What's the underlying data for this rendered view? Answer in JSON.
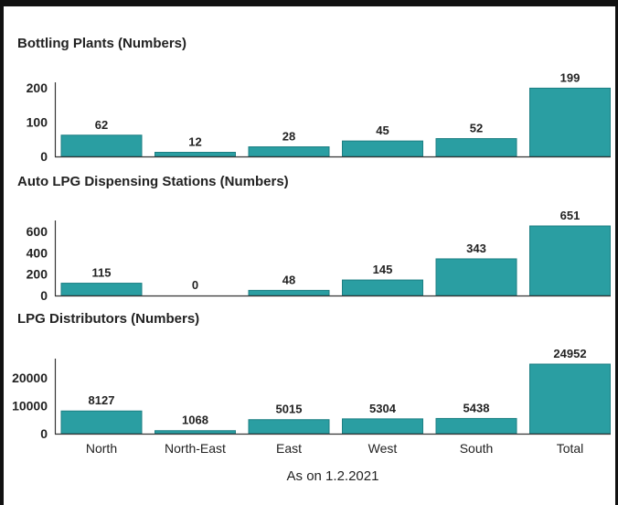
{
  "chart_data": [
    {
      "type": "bar",
      "title": "Bottling Plants (Numbers)",
      "categories": [
        "North",
        "North-East",
        "East",
        "West",
        "South",
        "Total"
      ],
      "values": [
        62,
        12,
        28,
        45,
        52,
        199
      ],
      "yticks": [
        0,
        100,
        200
      ],
      "ylim": [
        0,
        200
      ]
    },
    {
      "type": "bar",
      "title": "Auto LPG Dispensing Stations (Numbers)",
      "categories": [
        "North",
        "North-East",
        "East",
        "West",
        "South",
        "Total"
      ],
      "values": [
        115,
        0,
        48,
        145,
        343,
        651
      ],
      "yticks": [
        0,
        200,
        400,
        600
      ],
      "ylim": [
        0,
        651
      ]
    },
    {
      "type": "bar",
      "title": "LPG Distributors (Numbers)",
      "categories": [
        "North",
        "North-East",
        "East",
        "West",
        "South",
        "Total"
      ],
      "values": [
        8127,
        1068,
        5015,
        5304,
        5438,
        24952
      ],
      "yticks": [
        0,
        10000,
        20000
      ],
      "ylim": [
        0,
        24952
      ]
    }
  ],
  "footer": "As on 1.2.2021",
  "colors": {
    "bar": "#2a9ea2",
    "bar_edge": "#1c7f83"
  }
}
